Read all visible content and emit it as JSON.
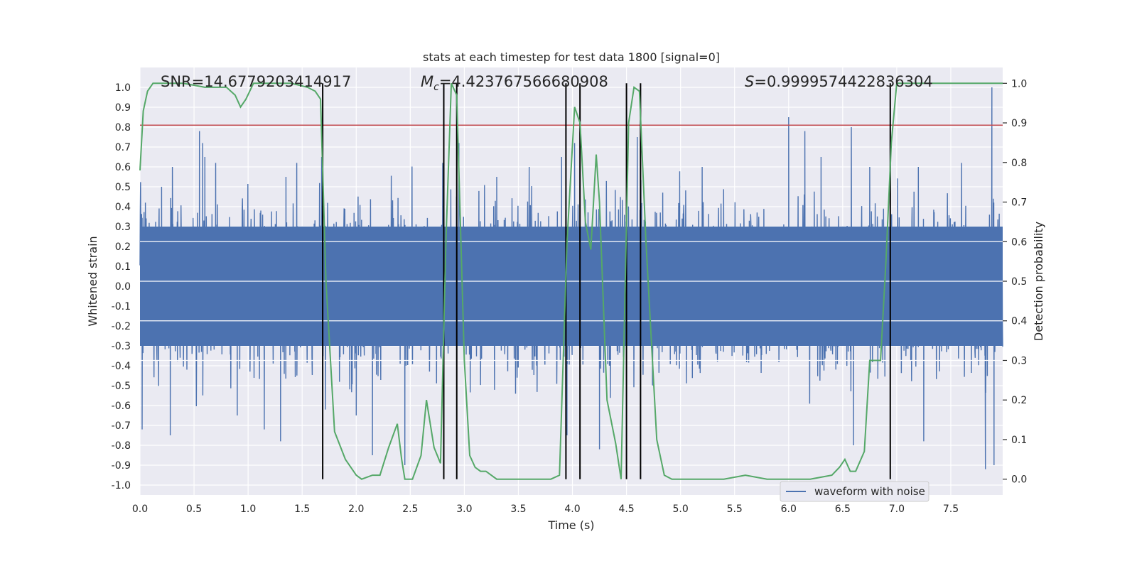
{
  "chart_data": {
    "type": "line",
    "title": "stats at each timestep for test data 1800 [signal=0]",
    "xlabel": "Time (s)",
    "ylabel_left": "Whitened strain",
    "ylabel_right": "Detection probability",
    "xlim": [
      0.0,
      7.98
    ],
    "ylim_left": [
      -1.05,
      1.1
    ],
    "ylim_right": [
      -0.04,
      1.04
    ],
    "x_ticks": [
      0.0,
      0.5,
      1.0,
      1.5,
      2.0,
      2.5,
      3.0,
      3.5,
      4.0,
      4.5,
      5.0,
      5.5,
      6.0,
      6.5,
      7.0,
      7.5
    ],
    "y_ticks_left": [
      -1.0,
      -0.9,
      -0.8,
      -0.7,
      -0.6,
      -0.5,
      -0.4,
      -0.3,
      -0.2,
      -0.1,
      0.0,
      0.1,
      0.2,
      0.3,
      0.4,
      0.5,
      0.6,
      0.7,
      0.8,
      0.9,
      1.0
    ],
    "y_ticks_right": [
      0.0,
      0.1,
      0.2,
      0.3,
      0.4,
      0.5,
      0.6,
      0.7,
      0.8,
      0.9,
      1.0
    ],
    "grid": true,
    "legend_position": "lower-right",
    "annotations": {
      "snr": "SNR=14.6779203414917",
      "mc_symbol": "M",
      "mc_sub": "c",
      "mc_value": "=4.423767566680908",
      "s_symbol": "S",
      "s_value": "=0.9999574422836304"
    },
    "series": [
      {
        "name": "waveform with noise",
        "axis": "left",
        "color": "#4c72b0",
        "spike_peaks": [
          [
            0.02,
            -0.72
          ],
          [
            0.05,
            0.42
          ],
          [
            0.2,
            0.5
          ],
          [
            0.28,
            -0.75
          ],
          [
            0.3,
            0.6
          ],
          [
            0.55,
            0.78
          ],
          [
            0.58,
            0.72
          ],
          [
            0.6,
            0.65
          ],
          [
            0.7,
            0.62
          ],
          [
            0.9,
            -0.65
          ],
          [
            1.15,
            -0.72
          ],
          [
            1.3,
            -0.78
          ],
          [
            1.35,
            0.55
          ],
          [
            1.45,
            0.62
          ],
          [
            1.68,
            0.65
          ],
          [
            2.0,
            -0.65
          ],
          [
            2.15,
            -0.85
          ],
          [
            2.45,
            -0.9
          ],
          [
            2.8,
            0.62
          ],
          [
            2.95,
            0.72
          ],
          [
            3.3,
            0.55
          ],
          [
            3.6,
            0.6
          ],
          [
            3.9,
            0.65
          ],
          [
            3.95,
            -0.75
          ],
          [
            4.02,
            0.72
          ],
          [
            4.25,
            -0.82
          ],
          [
            4.6,
            0.75
          ],
          [
            5.2,
            0.6
          ],
          [
            6.0,
            0.85
          ],
          [
            6.15,
            0.78
          ],
          [
            6.3,
            0.65
          ],
          [
            6.58,
            0.8
          ],
          [
            6.6,
            -0.8
          ],
          [
            6.75,
            0.6
          ],
          [
            7.2,
            0.6
          ],
          [
            7.25,
            -0.78
          ],
          [
            7.6,
            0.62
          ],
          [
            7.82,
            -0.92
          ],
          [
            7.88,
            1.0
          ],
          [
            7.9,
            -0.9
          ]
        ]
      },
      {
        "name": "detection probability",
        "axis": "right",
        "color": "#55a868",
        "x": [
          0.0,
          0.03,
          0.07,
          0.12,
          0.2,
          0.4,
          0.6,
          0.8,
          0.88,
          0.93,
          0.98,
          1.05,
          1.2,
          1.4,
          1.55,
          1.62,
          1.67,
          1.72,
          1.8,
          1.9,
          2.0,
          2.05,
          2.15,
          2.22,
          2.3,
          2.38,
          2.42,
          2.45,
          2.52,
          2.6,
          2.65,
          2.72,
          2.78,
          2.83,
          2.88,
          2.93,
          3.0,
          3.05,
          3.1,
          3.15,
          3.2,
          3.3,
          3.4,
          3.6,
          3.8,
          3.88,
          3.95,
          4.02,
          4.07,
          4.12,
          4.17,
          4.22,
          4.25,
          4.32,
          4.4,
          4.45,
          4.52,
          4.57,
          4.62,
          4.68,
          4.78,
          4.85,
          4.92,
          5.0,
          5.2,
          5.4,
          5.6,
          5.8,
          6.0,
          6.2,
          6.4,
          6.47,
          6.52,
          6.57,
          6.62,
          6.7,
          6.75,
          6.8,
          6.85,
          6.9,
          6.95,
          7.0,
          7.1,
          7.3,
          7.5,
          7.7,
          7.85,
          7.98
        ],
        "y": [
          0.78,
          0.93,
          0.98,
          1.0,
          1.0,
          1.0,
          0.99,
          0.99,
          0.97,
          0.94,
          0.96,
          1.0,
          1.0,
          1.0,
          0.99,
          0.98,
          0.96,
          0.5,
          0.12,
          0.05,
          0.01,
          0.0,
          0.01,
          0.01,
          0.08,
          0.14,
          0.05,
          0.0,
          0.0,
          0.06,
          0.2,
          0.08,
          0.04,
          0.6,
          1.0,
          0.97,
          0.3,
          0.06,
          0.03,
          0.02,
          0.02,
          0.0,
          0.0,
          0.0,
          0.0,
          0.01,
          0.6,
          0.94,
          0.9,
          0.65,
          0.58,
          0.82,
          0.7,
          0.2,
          0.09,
          0.0,
          0.9,
          0.99,
          0.98,
          0.6,
          0.1,
          0.01,
          0.0,
          0.0,
          0.0,
          0.0,
          0.01,
          0.0,
          0.0,
          0.0,
          0.01,
          0.03,
          0.05,
          0.02,
          0.02,
          0.07,
          0.3,
          0.3,
          0.3,
          0.55,
          0.85,
          1.0,
          1.0,
          1.0,
          1.0,
          1.0,
          1.0,
          1.0
        ]
      }
    ],
    "threshold": {
      "axis": "left",
      "value": 0.81,
      "color": "#c44e52"
    },
    "vertical_lines": {
      "color": "#000000",
      "x": [
        1.69,
        2.81,
        2.93,
        3.94,
        4.07,
        4.5,
        4.63,
        6.94
      ]
    }
  }
}
